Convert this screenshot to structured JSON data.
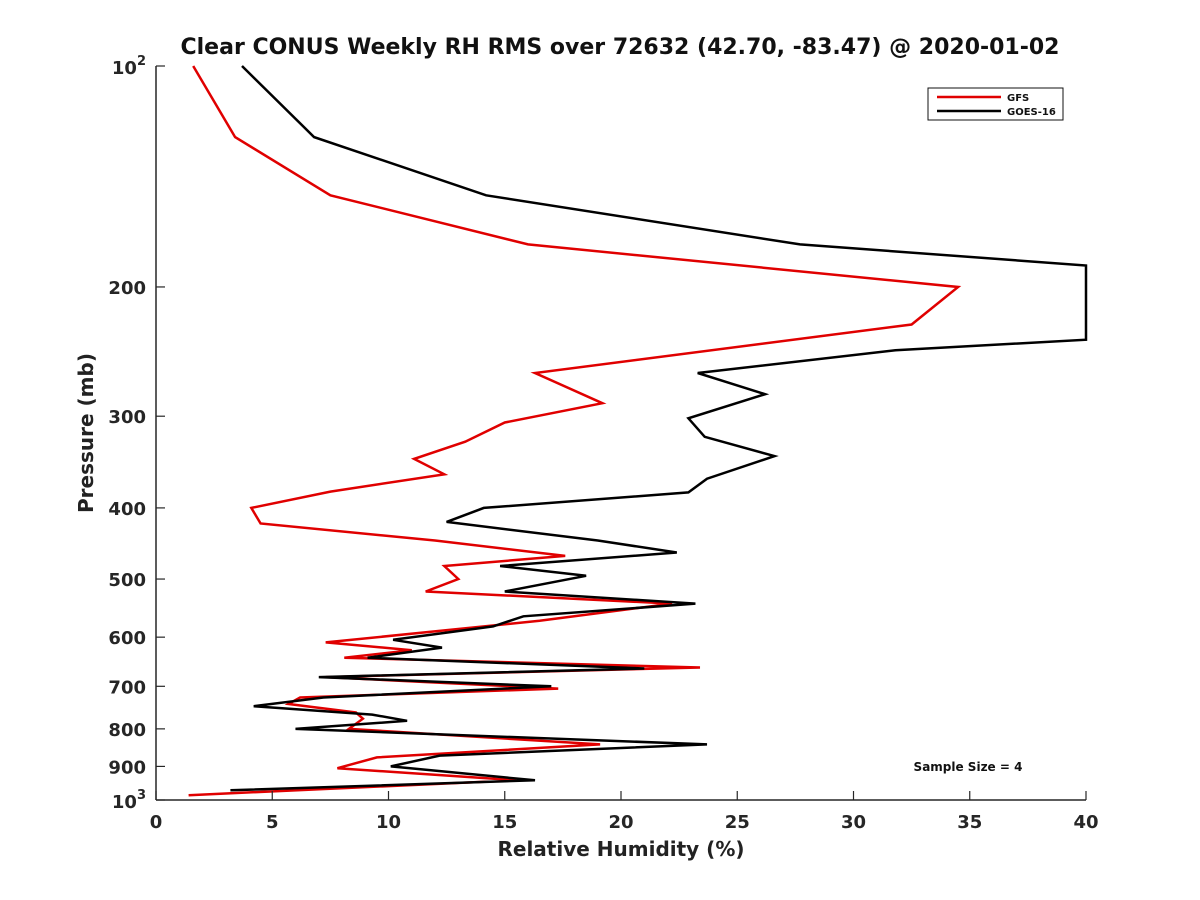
{
  "chart_data": {
    "type": "line",
    "title": "Clear CONUS Weekly RH RMS over 72632 (42.70, -83.47) @ 2020-01-02",
    "xlabel": "Relative Humidity (%)",
    "ylabel": "Pressure (mb)",
    "xlim": [
      0,
      40
    ],
    "ylim": [
      100,
      1000
    ],
    "y_scale": "log",
    "y_reversed": true,
    "x_ticks": [
      0,
      5,
      10,
      15,
      20,
      25,
      30,
      35,
      40
    ],
    "x_tick_labels": [
      "0",
      "5",
      "10",
      "15",
      "20",
      "25",
      "30",
      "35",
      "40"
    ],
    "y_ticks": [
      200,
      300,
      400,
      500,
      600,
      700,
      800,
      900
    ],
    "y_tick_labels": [
      "200",
      "300",
      "400",
      "500",
      "600",
      "700",
      "800",
      "900"
    ],
    "y_end_ticks": [
      {
        "value": 100,
        "base": "10",
        "exp": "2"
      },
      {
        "value": 1000,
        "base": "10",
        "exp": "3"
      }
    ],
    "grid": false,
    "legend_position": "top-right",
    "annotation": "Sample Size = 4",
    "series": [
      {
        "name": "GFS",
        "color": "#e00000",
        "points": [
          [
            1.6,
            100
          ],
          [
            3.4,
            125
          ],
          [
            7.5,
            150
          ],
          [
            16,
            175
          ],
          [
            34.5,
            200
          ],
          [
            32.5,
            225
          ],
          [
            16.3,
            262
          ],
          [
            19.2,
            288
          ],
          [
            15,
            306
          ],
          [
            13.3,
            325
          ],
          [
            11.1,
            343
          ],
          [
            12.4,
            360
          ],
          [
            7.5,
            380
          ],
          [
            4.1,
            400
          ],
          [
            4.5,
            420
          ],
          [
            12,
            443
          ],
          [
            17.6,
            465
          ],
          [
            12.4,
            480
          ],
          [
            13,
            500
          ],
          [
            11.6,
            520
          ],
          [
            22.2,
            540
          ],
          [
            16.5,
            570
          ],
          [
            7.3,
            610
          ],
          [
            11,
            625
          ],
          [
            8.1,
            640
          ],
          [
            23.4,
            660
          ],
          [
            7.3,
            680
          ],
          [
            17.3,
            705
          ],
          [
            6.2,
            725
          ],
          [
            5.7,
            740
          ],
          [
            8.6,
            760
          ],
          [
            8.9,
            775
          ],
          [
            8.3,
            800
          ],
          [
            19.1,
            840
          ],
          [
            9.5,
            875
          ],
          [
            7.8,
            905
          ],
          [
            15.5,
            940
          ],
          [
            1.4,
            985
          ]
        ]
      },
      {
        "name": "GOES-16",
        "color": "#000000",
        "points": [
          [
            3.7,
            100
          ],
          [
            6.8,
            125
          ],
          [
            14.2,
            150
          ],
          [
            27.7,
            175
          ],
          [
            40,
            187
          ],
          [
            40,
            236
          ],
          [
            31.8,
            244
          ],
          [
            23.3,
            262
          ],
          [
            26.2,
            280
          ],
          [
            22.9,
            302
          ],
          [
            23.6,
            320
          ],
          [
            26.6,
            340
          ],
          [
            23.7,
            365
          ],
          [
            22.9,
            381
          ],
          [
            14.1,
            400
          ],
          [
            12.5,
            418
          ],
          [
            19,
            443
          ],
          [
            22.4,
            460
          ],
          [
            14.8,
            480
          ],
          [
            18.5,
            495
          ],
          [
            15,
            520
          ],
          [
            23.2,
            540
          ],
          [
            15.8,
            562
          ],
          [
            14.5,
            580
          ],
          [
            10.2,
            605
          ],
          [
            12.3,
            620
          ],
          [
            9.1,
            640
          ],
          [
            21,
            662
          ],
          [
            7,
            680
          ],
          [
            17,
            700
          ],
          [
            7.2,
            725
          ],
          [
            4.2,
            745
          ],
          [
            9.3,
            765
          ],
          [
            10.8,
            780
          ],
          [
            6,
            800
          ],
          [
            23.7,
            840
          ],
          [
            12.2,
            870
          ],
          [
            10.1,
            900
          ],
          [
            16.3,
            940
          ],
          [
            3.2,
            970
          ]
        ]
      }
    ]
  }
}
